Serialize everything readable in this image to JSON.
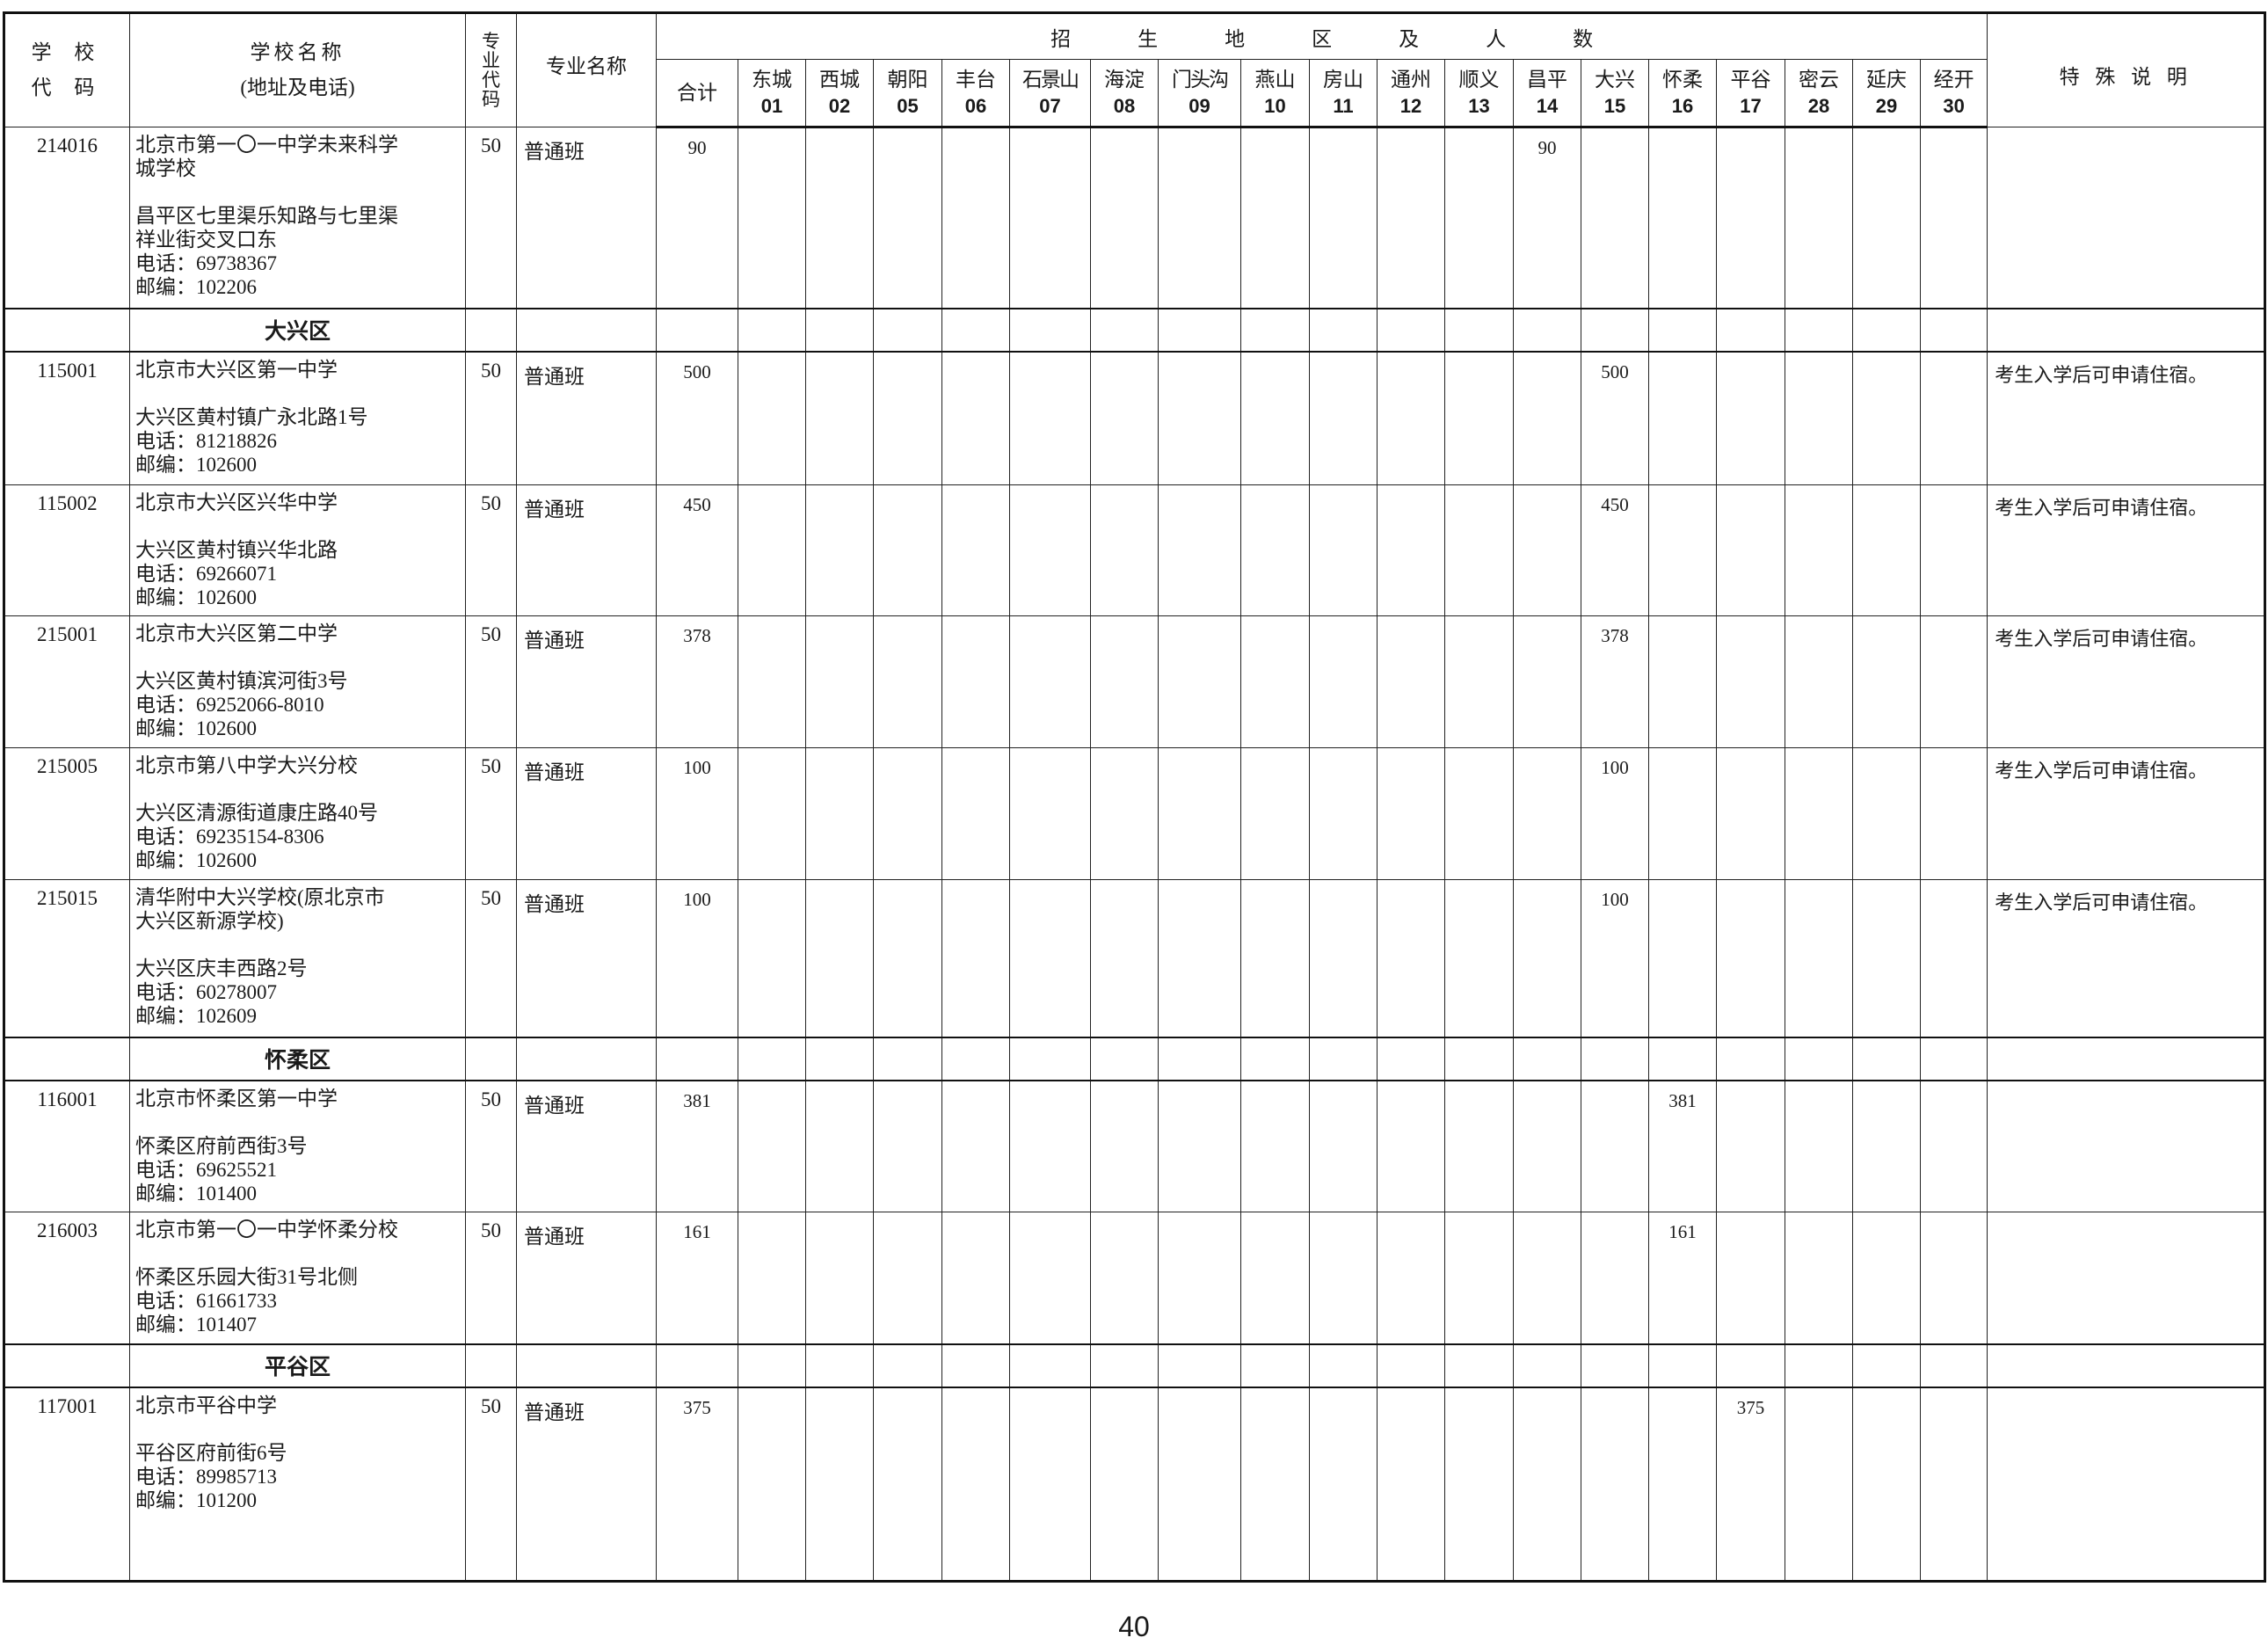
{
  "header": {
    "school_code": [
      "学 校",
      "代 码"
    ],
    "school_name": [
      "学校名称",
      "(地址及电话)"
    ],
    "major_code": "专业代码",
    "major_name": "专业名称",
    "region_title": [
      "招",
      "生",
      "地",
      "区",
      "及",
      "人",
      "数"
    ],
    "total": "合计",
    "regions": [
      {
        "name": "东城",
        "code": "01"
      },
      {
        "name": "西城",
        "code": "02"
      },
      {
        "name": "朝阳",
        "code": "05"
      },
      {
        "name": "丰台",
        "code": "06"
      },
      {
        "name": "石景山",
        "code": "07"
      },
      {
        "name": "海淀",
        "code": "08"
      },
      {
        "name": "门头沟",
        "code": "09"
      },
      {
        "name": "燕山",
        "code": "10"
      },
      {
        "name": "房山",
        "code": "11"
      },
      {
        "name": "通州",
        "code": "12"
      },
      {
        "name": "顺义",
        "code": "13"
      },
      {
        "name": "昌平",
        "code": "14"
      },
      {
        "name": "大兴",
        "code": "15"
      },
      {
        "name": "怀柔",
        "code": "16"
      },
      {
        "name": "平谷",
        "code": "17"
      },
      {
        "name": "密云",
        "code": "28"
      },
      {
        "name": "延庆",
        "code": "29"
      },
      {
        "name": "经开",
        "code": "30"
      }
    ],
    "notes": "特 殊 说 明"
  },
  "rows": [
    {
      "type": "school",
      "code": "214016",
      "name_lines": [
        "北京市第一〇一中学未来科学",
        "城学校"
      ],
      "address_lines": [
        "昌平区七里渠乐知路与七里渠",
        "祥业街交叉口东"
      ],
      "phone": "电话：69738367",
      "postcode": "邮编：102206",
      "major_code": "50",
      "major_name": "普通班",
      "total": "90",
      "counts": {
        "14": "90"
      },
      "note": ""
    },
    {
      "type": "district",
      "name": "大兴区"
    },
    {
      "type": "school",
      "code": "115001",
      "name_lines": [
        "北京市大兴区第一中学"
      ],
      "address_lines": [
        "大兴区黄村镇广永北路1号"
      ],
      "phone": "电话：81218826",
      "postcode": "邮编：102600",
      "major_code": "50",
      "major_name": "普通班",
      "total": "500",
      "counts": {
        "15": "500"
      },
      "note": "考生入学后可申请住宿。"
    },
    {
      "type": "school",
      "code": "115002",
      "name_lines": [
        "北京市大兴区兴华中学"
      ],
      "address_lines": [
        "大兴区黄村镇兴华北路"
      ],
      "phone": "电话：69266071",
      "postcode": "邮编：102600",
      "major_code": "50",
      "major_name": "普通班",
      "total": "450",
      "counts": {
        "15": "450"
      },
      "note": "考生入学后可申请住宿。"
    },
    {
      "type": "school",
      "code": "215001",
      "name_lines": [
        "北京市大兴区第二中学"
      ],
      "address_lines": [
        "大兴区黄村镇滨河街3号"
      ],
      "phone": "电话：69252066-8010",
      "postcode": "邮编：102600",
      "major_code": "50",
      "major_name": "普通班",
      "total": "378",
      "counts": {
        "15": "378"
      },
      "note": "考生入学后可申请住宿。"
    },
    {
      "type": "school",
      "code": "215005",
      "name_lines": [
        "北京市第八中学大兴分校"
      ],
      "address_lines": [
        "大兴区清源街道康庄路40号"
      ],
      "phone": "电话：69235154-8306",
      "postcode": "邮编：102600",
      "major_code": "50",
      "major_name": "普通班",
      "total": "100",
      "counts": {
        "15": "100"
      },
      "note": "考生入学后可申请住宿。"
    },
    {
      "type": "school",
      "code": "215015",
      "name_lines": [
        "清华附中大兴学校(原北京市",
        "大兴区新源学校)"
      ],
      "address_lines": [
        "大兴区庆丰西路2号"
      ],
      "phone": "电话：60278007",
      "postcode": "邮编：102609",
      "major_code": "50",
      "major_name": "普通班",
      "total": "100",
      "counts": {
        "15": "100"
      },
      "note": "考生入学后可申请住宿。"
    },
    {
      "type": "district",
      "name": "怀柔区"
    },
    {
      "type": "school",
      "code": "116001",
      "name_lines": [
        "北京市怀柔区第一中学"
      ],
      "address_lines": [
        "怀柔区府前西街3号"
      ],
      "phone": "电话：69625521",
      "postcode": "邮编：101400",
      "major_code": "50",
      "major_name": "普通班",
      "total": "381",
      "counts": {
        "16": "381"
      },
      "note": ""
    },
    {
      "type": "school",
      "code": "216003",
      "name_lines": [
        "北京市第一〇一中学怀柔分校"
      ],
      "address_lines": [
        "怀柔区乐园大街31号北侧"
      ],
      "phone": "电话：61661733",
      "postcode": "邮编：101407",
      "major_code": "50",
      "major_name": "普通班",
      "total": "161",
      "counts": {
        "16": "161"
      },
      "note": ""
    },
    {
      "type": "district",
      "name": "平谷区"
    },
    {
      "type": "school",
      "code": "117001",
      "name_lines": [
        "北京市平谷中学"
      ],
      "address_lines": [
        "平谷区府前街6号"
      ],
      "phone": "电话：89985713",
      "postcode": "邮编：101200",
      "major_code": "50",
      "major_name": "普通班",
      "total": "375",
      "counts": {
        "17": "375"
      },
      "note": ""
    }
  ],
  "page_number": "40"
}
